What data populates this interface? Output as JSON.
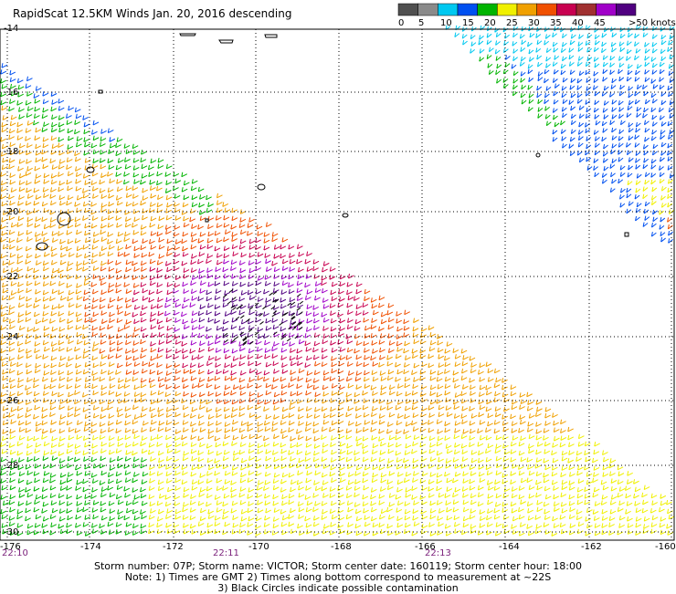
{
  "title": "RapidScat 12.5KM Winds Jan. 20, 2016 descending",
  "legend": {
    "labels": [
      "0",
      "5",
      "10",
      "15",
      "20",
      "25",
      "30",
      "35",
      "40",
      "45",
      ">50 knots"
    ],
    "colors": [
      "#505050",
      "#8a8a8a",
      "#00c8f0",
      "#0050f0",
      "#00b400",
      "#f0f000",
      "#f0a000",
      "#f05000",
      "#c80050",
      "#a03030",
      "#a000c8",
      "#500080"
    ]
  },
  "axes": {
    "lat_labels": [
      "-14",
      "-16",
      "-18",
      "-20",
      "-22",
      "-24",
      "-26",
      "-28",
      "-30"
    ],
    "lon_labels": [
      "-176",
      "-174",
      "-172",
      "-170",
      "-168",
      "-166",
      "-164",
      "-162",
      "-160"
    ]
  },
  "times": [
    "22:10",
    "22:11",
    "22:13"
  ],
  "footer": {
    "line1": "Storm number: 07P;  Storm name: VICTOR;  Storm center date: 160119;  Storm center hour: 18:00",
    "line2": "Note: 1) Times are GMT  2) Times along bottom correspond to measurement at ~22S",
    "line3": "3) Black Circles indicate possible contamination"
  }
}
